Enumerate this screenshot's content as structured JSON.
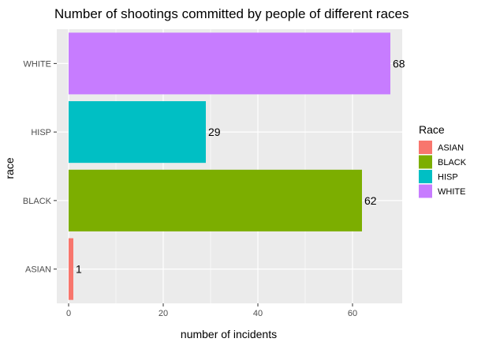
{
  "chart_data": {
    "type": "bar",
    "orientation": "horizontal",
    "title": "Number of shootings committed by people of different races",
    "xlabel": "number of incidents",
    "ylabel": "race",
    "categories": [
      "ASIAN",
      "BLACK",
      "HISP",
      "WHITE"
    ],
    "values": [
      1,
      62,
      29,
      68
    ],
    "xlim": [
      -2.5,
      70.5
    ],
    "xticks": [
      0,
      20,
      40,
      60
    ],
    "grid": true,
    "data_labels": true,
    "legend": {
      "title": "Race",
      "position": "right",
      "entries": [
        "ASIAN",
        "BLACK",
        "HISP",
        "WHITE"
      ]
    },
    "colors": {
      "ASIAN": "#F8766D",
      "BLACK": "#7CAE00",
      "HISP": "#00BFC4",
      "WHITE": "#C77CFF"
    },
    "panel_background": "#EBEBEB",
    "grid_color": "#FFFFFF"
  }
}
